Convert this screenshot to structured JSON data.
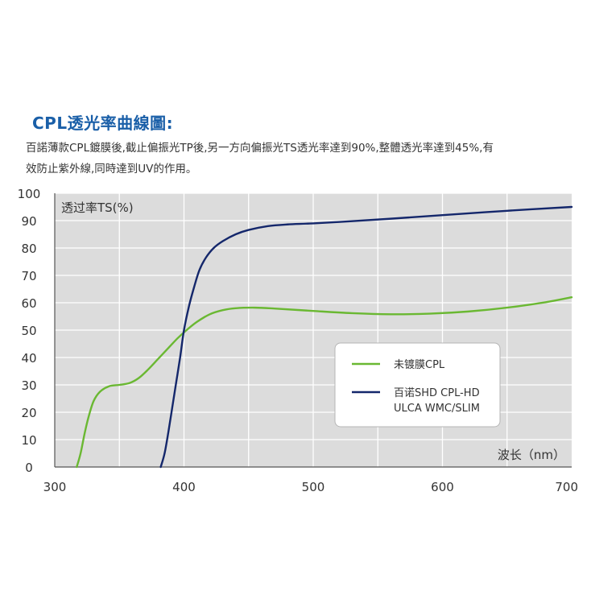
{
  "header": {
    "title": "CPL透光率曲線圖:",
    "description_line1": "百諾薄款CPL鍍膜後,截止偏振光TP後,另一方向偏振光TS透光率達到90%,整體透光率達到45%,有",
    "description_line2": "效防止紫外線,同時達到UV的作用。"
  },
  "colors": {
    "plot_background": "#dcdcdc",
    "grid": "#ffffff",
    "green_series": "#6ab832",
    "navy_series": "#14276b",
    "title": "#1a5fa8"
  },
  "chart_data": {
    "type": "line",
    "ylabel": "透过率TS(%)",
    "xlabel": "波长（nm）",
    "xlim": [
      300,
      700
    ],
    "ylim": [
      0,
      100
    ],
    "x_ticks": [
      300,
      400,
      500,
      600,
      700
    ],
    "y_ticks": [
      0,
      10,
      20,
      30,
      40,
      50,
      60,
      70,
      80,
      90,
      100
    ],
    "grid": true,
    "legend_position": "right",
    "series": [
      {
        "name": "未镀膜CPL",
        "color": "#6ab832",
        "x": [
          317,
          320,
          323,
          326,
          330,
          335,
          342,
          350,
          358,
          365,
          372,
          380,
          388,
          395,
          402,
          410,
          420,
          430,
          440,
          455,
          470,
          500,
          530,
          560,
          590,
          620,
          650,
          680,
          700
        ],
        "y": [
          0,
          5,
          12,
          18,
          24,
          27.5,
          29.5,
          30,
          30.7,
          32.5,
          35.5,
          39.5,
          43.5,
          47,
          50,
          53,
          55.8,
          57.3,
          58,
          58.2,
          57.9,
          57,
          56.2,
          55.8,
          56,
          56.8,
          58.2,
          60.2,
          62
        ]
      },
      {
        "name": "百诺SHD CPL-HD ULCA WMC/SLIM",
        "color": "#14276b",
        "x": [
          382,
          385,
          388,
          391,
          394,
          397,
          400,
          404,
          408,
          412,
          417,
          423,
          430,
          440,
          450,
          465,
          480,
          500,
          530,
          560,
          600,
          650,
          700
        ],
        "y": [
          0,
          5,
          13,
          22,
          31,
          40,
          50,
          59,
          66,
          72,
          76.5,
          80,
          82.5,
          85,
          86.6,
          88,
          88.6,
          89,
          89.8,
          90.7,
          92,
          93.6,
          95
        ]
      }
    ]
  }
}
